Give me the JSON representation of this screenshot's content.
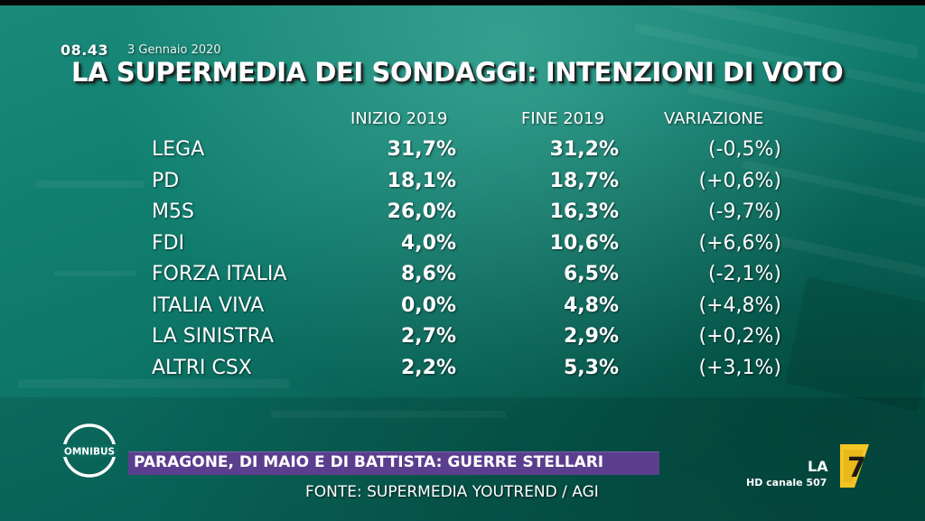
{
  "header": {
    "time": "08.43",
    "date": "3 Gennaio 2020",
    "title": "LA SUPERMEDIA DEI SONDAGGI: INTENZIONI DI VOTO"
  },
  "chart_data": {
    "type": "table",
    "title": "LA SUPERMEDIA DEI SONDAGGI: INTENZIONI DI VOTO",
    "columns": [
      "INIZIO 2019",
      "FINE 2019",
      "VARIAZIONE"
    ],
    "rows": [
      {
        "party": "LEGA",
        "start": "31,7%",
        "end": "31,2%",
        "change": "(-0,5%)"
      },
      {
        "party": "PD",
        "start": "18,1%",
        "end": "18,7%",
        "change": "(+0,6%)"
      },
      {
        "party": "M5S",
        "start": "26,0%",
        "end": "16,3%",
        "change": "(-9,7%)"
      },
      {
        "party": "FDI",
        "start": "4,0%",
        "end": "10,6%",
        "change": "(+6,6%)"
      },
      {
        "party": "FORZA ITALIA",
        "start": "8,6%",
        "end": "6,5%",
        "change": "(-2,1%)"
      },
      {
        "party": "ITALIA VIVA",
        "start": "0,0%",
        "end": "4,8%",
        "change": "(+4,8%)"
      },
      {
        "party": "LA SINISTRA",
        "start": "2,7%",
        "end": "2,9%",
        "change": "(+0,2%)"
      },
      {
        "party": "ALTRI CSX",
        "start": "2,2%",
        "end": "5,3%",
        "change": "(+3,1%)"
      }
    ]
  },
  "footer": {
    "show_logo_text": "OMNIBUS",
    "banner": "PARAGONE, DI MAIO E DI BATTISTA: GUERRE STELLARI",
    "source": "FONTE: SUPERMEDIA YOUTREND / AGI",
    "channel_logo_text": "LA",
    "channel_logo_number": "7",
    "channel_info": "HD canale 507"
  },
  "colors": {
    "background": "#0f7c6d",
    "banner": "#5b3e8e",
    "text": "#ffffff",
    "la7_yellow": "#f3c623"
  },
  "icons": {
    "show_logo": "omnibus-logo-icon",
    "channel_logo": "la7-logo-icon"
  }
}
